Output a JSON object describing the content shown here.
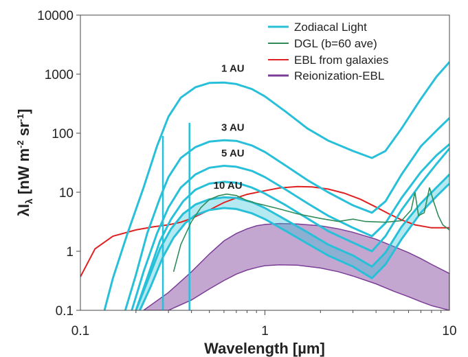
{
  "chart_data": {
    "type": "line",
    "x_scale": "log",
    "y_scale": "log",
    "xlim": [
      0.1,
      10
    ],
    "ylim": [
      0.1,
      10000
    ],
    "xlabel": "Wavelength [µm]",
    "ylabel_parts": [
      "λI",
      "λ",
      " [nW m",
      "-2",
      " sr",
      "-1",
      "]"
    ],
    "x_ticks": [
      0.1,
      1,
      10
    ],
    "x_tick_labels": [
      "0.1",
      "1",
      "10"
    ],
    "y_ticks": [
      0.1,
      1,
      10,
      100,
      1000,
      10000
    ],
    "y_tick_labels": [
      "0.1",
      "1",
      "10",
      "100",
      "1000",
      "10000"
    ],
    "grid": false,
    "legend_position": "top-right",
    "legend": [
      {
        "label": "Zodiacal Light",
        "color": "#27c0d8"
      },
      {
        "label": "DGL (b=60 ave)",
        "color": "#2e8b57"
      },
      {
        "label": "EBL from galaxies",
        "color": "#e02020"
      },
      {
        "label": "Reionization-EBL",
        "color": "#7a3c96"
      }
    ],
    "zodiacal_curves": [
      {
        "label": "",
        "points": [
          [
            0.135,
            0.1
          ],
          [
            0.15,
            0.35
          ],
          [
            0.18,
            2
          ],
          [
            0.22,
            12
          ],
          [
            0.26,
            60
          ],
          [
            0.3,
            190
          ],
          [
            0.35,
            400
          ],
          [
            0.42,
            600
          ],
          [
            0.5,
            710
          ],
          [
            0.6,
            720
          ],
          [
            0.7,
            680
          ],
          [
            0.85,
            560
          ],
          [
            1,
            420
          ],
          [
            1.3,
            230
          ],
          [
            1.7,
            120
          ],
          [
            2.2,
            75
          ],
          [
            3,
            50
          ],
          [
            3.8,
            38
          ],
          [
            4.5,
            50
          ],
          [
            5.5,
            120
          ],
          [
            7,
            380
          ],
          [
            8.5,
            900
          ],
          [
            10,
            1600
          ]
        ]
      },
      {
        "label": "1 AU",
        "label_at": [
          0.67,
          1100
        ],
        "points": [
          [
            0.175,
            0.1
          ],
          [
            0.2,
            0.4
          ],
          [
            0.23,
            2
          ],
          [
            0.27,
            8
          ],
          [
            0.3,
            18
          ],
          [
            0.35,
            38
          ],
          [
            0.42,
            58
          ],
          [
            0.5,
            72
          ],
          [
            0.6,
            76
          ],
          [
            0.7,
            74
          ],
          [
            0.85,
            62
          ],
          [
            1,
            48
          ],
          [
            1.3,
            28
          ],
          [
            1.7,
            16
          ],
          [
            2.2,
            10
          ],
          [
            3,
            6
          ],
          [
            3.8,
            4.5
          ],
          [
            4.5,
            7
          ],
          [
            5.5,
            20
          ],
          [
            7,
            60
          ],
          [
            8.5,
            110
          ],
          [
            10,
            180
          ]
        ]
      },
      {
        "label": "3 AU",
        "label_at": [
          0.67,
          110
        ],
        "points": [
          [
            0.19,
            0.1
          ],
          [
            0.22,
            0.45
          ],
          [
            0.26,
            2
          ],
          [
            0.3,
            5.5
          ],
          [
            0.35,
            12
          ],
          [
            0.42,
            20
          ],
          [
            0.5,
            26
          ],
          [
            0.6,
            28
          ],
          [
            0.7,
            27
          ],
          [
            0.85,
            23
          ],
          [
            1,
            18
          ],
          [
            1.3,
            11
          ],
          [
            1.7,
            6.5
          ],
          [
            2.2,
            4
          ],
          [
            3,
            2.5
          ],
          [
            3.8,
            1.8
          ],
          [
            4.5,
            3
          ],
          [
            5.5,
            8
          ],
          [
            7,
            22
          ],
          [
            8.5,
            42
          ],
          [
            10,
            65
          ]
        ]
      },
      {
        "label": "5 AU",
        "label_at": [
          0.67,
          40
        ],
        "points": [
          [
            0.2,
            0.1
          ],
          [
            0.23,
            0.35
          ],
          [
            0.27,
            1.5
          ],
          [
            0.31,
            3.5
          ],
          [
            0.36,
            7
          ],
          [
            0.42,
            11
          ],
          [
            0.5,
            14
          ],
          [
            0.6,
            15
          ],
          [
            0.7,
            14.5
          ],
          [
            0.85,
            12
          ],
          [
            1,
            9.5
          ],
          [
            1.3,
            6
          ],
          [
            1.7,
            3.6
          ],
          [
            2.2,
            2.2
          ],
          [
            3,
            1.4
          ],
          [
            3.8,
            1.0
          ],
          [
            4.5,
            1.8
          ],
          [
            5.5,
            5
          ],
          [
            7,
            14
          ],
          [
            8.5,
            30
          ],
          [
            10,
            55
          ]
        ]
      },
      {
        "label": "10 AU",
        "label_at": [
          0.63,
          11.5
        ],
        "points": [
          [
            0.2,
            0.1
          ],
          [
            0.23,
            0.3
          ],
          [
            0.27,
            1.1
          ],
          [
            0.31,
            2.4
          ],
          [
            0.36,
            4.3
          ],
          [
            0.42,
            6.2
          ],
          [
            0.5,
            7.6
          ],
          [
            0.6,
            8.2
          ],
          [
            0.7,
            8
          ],
          [
            0.85,
            6.8
          ],
          [
            1,
            5.4
          ],
          [
            1.3,
            3.4
          ],
          [
            1.7,
            2.1
          ],
          [
            2.2,
            1.3
          ],
          [
            3,
            0.85
          ],
          [
            3.8,
            0.55
          ],
          [
            4.5,
            0.95
          ],
          [
            5.5,
            2.6
          ],
          [
            7,
            6.5
          ],
          [
            8.5,
            12
          ],
          [
            10,
            20
          ]
        ]
      },
      {
        "label": "",
        "points": [
          [
            0.21,
            0.1
          ],
          [
            0.24,
            0.25
          ],
          [
            0.28,
            0.8
          ],
          [
            0.32,
            1.7
          ],
          [
            0.37,
            3
          ],
          [
            0.42,
            4.1
          ],
          [
            0.5,
            5
          ],
          [
            0.6,
            5.4
          ],
          [
            0.7,
            5.2
          ],
          [
            0.85,
            4.4
          ],
          [
            1,
            3.5
          ],
          [
            1.3,
            2.2
          ],
          [
            1.7,
            1.35
          ],
          [
            2.2,
            0.85
          ],
          [
            3,
            0.55
          ],
          [
            3.8,
            0.35
          ],
          [
            4.5,
            0.6
          ],
          [
            5.5,
            1.6
          ],
          [
            7,
            4.5
          ],
          [
            8.5,
            8.5
          ],
          [
            10,
            14
          ]
        ]
      }
    ],
    "zodiacal_spikes": [
      {
        "x": 0.28,
        "y_low": 0.1,
        "y_high": 90
      },
      {
        "x": 0.39,
        "y_low": 0.1,
        "y_high": 150
      }
    ],
    "dgl": [
      [
        0.32,
        0.45
      ],
      [
        0.35,
        1.3
      ],
      [
        0.4,
        3.2
      ],
      [
        0.45,
        5.5
      ],
      [
        0.5,
        7.5
      ],
      [
        0.56,
        8.7
      ],
      [
        0.62,
        9.3
      ],
      [
        0.7,
        8.8
      ],
      [
        0.8,
        7.2
      ],
      [
        0.9,
        6.5
      ],
      [
        1,
        6
      ],
      [
        1.2,
        5.2
      ],
      [
        1.5,
        4.3
      ],
      [
        2,
        3.6
      ],
      [
        2.5,
        3.2
      ],
      [
        3,
        3.5
      ],
      [
        3.5,
        3.2
      ],
      [
        4.5,
        3.1
      ],
      [
        5.5,
        3.3
      ],
      [
        6.2,
        5
      ],
      [
        6.5,
        10
      ],
      [
        6.8,
        4
      ],
      [
        7.3,
        4.5
      ],
      [
        7.8,
        12
      ],
      [
        8.2,
        7
      ],
      [
        8.7,
        4
      ],
      [
        9.2,
        2.8
      ],
      [
        10,
        2.3
      ]
    ],
    "ebl": [
      [
        0.1,
        0.37
      ],
      [
        0.12,
        1.1
      ],
      [
        0.15,
        1.8
      ],
      [
        0.2,
        2.3
      ],
      [
        0.25,
        2.6
      ],
      [
        0.3,
        2.8
      ],
      [
        0.35,
        3.1
      ],
      [
        0.4,
        3.6
      ],
      [
        0.5,
        5
      ],
      [
        0.6,
        6.7
      ],
      [
        0.7,
        8
      ],
      [
        0.8,
        9.2
      ],
      [
        1,
        10.6
      ],
      [
        1.2,
        11.8
      ],
      [
        1.5,
        12.5
      ],
      [
        1.8,
        12.3
      ],
      [
        2.2,
        11.3
      ],
      [
        2.7,
        9.6
      ],
      [
        3.3,
        7.6
      ],
      [
        4,
        5.6
      ],
      [
        4.7,
        4.3
      ],
      [
        5.5,
        3.4
      ],
      [
        6.5,
        2.8
      ],
      [
        8,
        2.5
      ],
      [
        10,
        2.5
      ]
    ],
    "reionization_band": {
      "upper": [
        [
          0.22,
          0.1
        ],
        [
          0.3,
          0.2
        ],
        [
          0.4,
          0.45
        ],
        [
          0.5,
          0.9
        ],
        [
          0.6,
          1.5
        ],
        [
          0.7,
          2.0
        ],
        [
          0.8,
          2.4
        ],
        [
          0.9,
          2.7
        ],
        [
          1,
          2.85
        ],
        [
          1.2,
          2.95
        ],
        [
          1.5,
          2.9
        ],
        [
          2,
          2.7
        ],
        [
          2.5,
          2.4
        ],
        [
          3,
          2.1
        ],
        [
          4,
          1.6
        ],
        [
          5,
          1.2
        ],
        [
          6,
          0.95
        ],
        [
          7,
          0.75
        ],
        [
          8,
          0.6
        ],
        [
          10,
          0.42
        ]
      ],
      "lower": [
        [
          0.22,
          0.1
        ],
        [
          0.3,
          0.1
        ],
        [
          0.4,
          0.15
        ],
        [
          0.5,
          0.23
        ],
        [
          0.6,
          0.32
        ],
        [
          0.7,
          0.41
        ],
        [
          0.8,
          0.48
        ],
        [
          0.9,
          0.53
        ],
        [
          1,
          0.57
        ],
        [
          1.2,
          0.59
        ],
        [
          1.5,
          0.58
        ],
        [
          2,
          0.52
        ],
        [
          2.5,
          0.45
        ],
        [
          3,
          0.38
        ],
        [
          4,
          0.28
        ],
        [
          5,
          0.21
        ],
        [
          6,
          0.17
        ],
        [
          7,
          0.14
        ],
        [
          8,
          0.12
        ],
        [
          10,
          0.1
        ]
      ]
    }
  }
}
